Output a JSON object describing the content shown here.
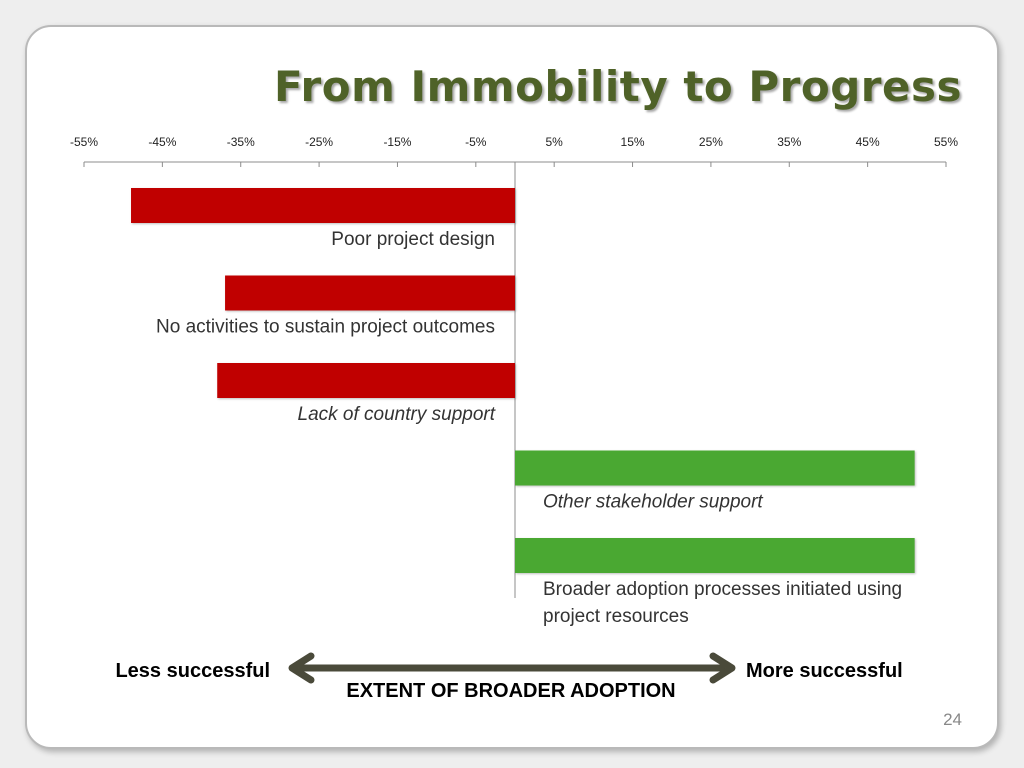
{
  "slide": {
    "title": "From Immobility to Progress",
    "page_number": "24"
  },
  "colors": {
    "title": "#4f6228",
    "negative_bar": "#c00000",
    "positive_bar": "#4aa832",
    "arrow": "#4a4a3a",
    "axis": "#8c8c8c",
    "text": "#333333"
  },
  "scale": {
    "less_label": "Less successful",
    "more_label": "More successful",
    "axis_title": "EXTENT OF BROADER ADOPTION"
  },
  "chart_data": {
    "type": "bar",
    "orientation": "horizontal",
    "x_ticks": [
      -55,
      -45,
      -35,
      -25,
      -15,
      -5,
      5,
      15,
      25,
      35,
      45,
      55
    ],
    "x_tick_labels": [
      "-55%",
      "-45%",
      "-35%",
      "-25%",
      "-15%",
      "-5%",
      "5%",
      "15%",
      "25%",
      "35%",
      "45%",
      "55%"
    ],
    "xlim": [
      -55,
      55
    ],
    "grid": false,
    "categories": [
      "Poor project design",
      "No activities to sustain project outcomes",
      "Lack of country support",
      "Other stakeholder support",
      "Broader adoption processes initiated using project resources"
    ],
    "values": [
      -49,
      -37,
      -38,
      51,
      51
    ]
  }
}
